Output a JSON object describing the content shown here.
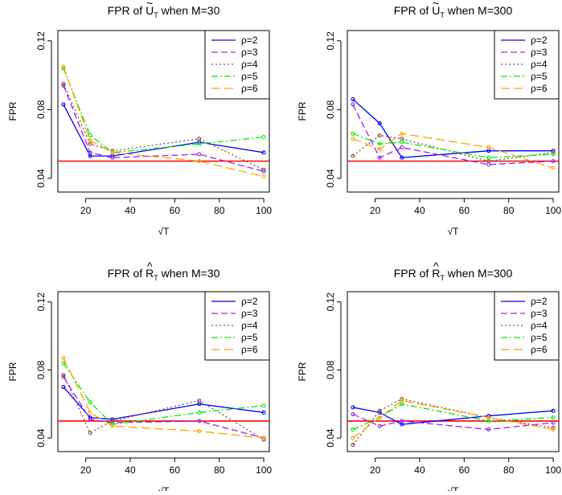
{
  "colors": {
    "reference_line": "#ff0000",
    "series": [
      "#0000ff",
      "#a020f0",
      "#8a4a4a",
      "#00ee00",
      "#ffa500"
    ]
  },
  "legend": [
    "ρ=2",
    "ρ=3",
    "ρ=4",
    "ρ=5",
    "ρ=6"
  ],
  "chart_data": [
    {
      "type": "line",
      "title": "FPR of Ũ_T when M=30",
      "title_parts": {
        "prefix": "FPR of ",
        "letter": "U",
        "accent": "~",
        "subscript": "T",
        "suffix": " when M=30"
      },
      "xlabel": "√T",
      "ylabel": "FPR",
      "xticks": [
        20,
        40,
        60,
        80,
        100
      ],
      "yticks": [
        0.04,
        0.08,
        0.12
      ],
      "xlim": [
        7.5,
        102.5
      ],
      "ylim": [
        0.032,
        0.126
      ],
      "reference_y": 0.05,
      "legend_placement": "top-right",
      "x": [
        10,
        22,
        32,
        71,
        100
      ],
      "series": [
        {
          "name": "ρ=2",
          "values": [
            0.083,
            0.053,
            0.053,
            0.061,
            0.055
          ]
        },
        {
          "name": "ρ=3",
          "values": [
            0.094,
            0.055,
            0.052,
            0.054,
            0.044
          ]
        },
        {
          "name": "ρ=4",
          "values": [
            0.095,
            0.06,
            0.056,
            0.063,
            0.045
          ]
        },
        {
          "name": "ρ=5",
          "values": [
            0.104,
            0.065,
            0.055,
            0.06,
            0.064
          ]
        },
        {
          "name": "ρ=6",
          "values": [
            0.105,
            0.062,
            0.055,
            0.05,
            0.041
          ]
        }
      ]
    },
    {
      "type": "line",
      "title": "FPR of Ũ_T when M=300",
      "title_parts": {
        "prefix": "FPR of ",
        "letter": "U",
        "accent": "~",
        "subscript": "T",
        "suffix": " when M=300"
      },
      "xlabel": "√T",
      "ylabel": "FPR",
      "xticks": [
        20,
        40,
        60,
        80,
        100
      ],
      "yticks": [
        0.04,
        0.08,
        0.12
      ],
      "xlim": [
        7.5,
        102.5
      ],
      "ylim": [
        0.032,
        0.126
      ],
      "reference_y": 0.05,
      "legend_placement": "top-right",
      "x": [
        10,
        22,
        32,
        71,
        100
      ],
      "series": [
        {
          "name": "ρ=2",
          "values": [
            0.086,
            0.072,
            0.052,
            0.056,
            0.056
          ]
        },
        {
          "name": "ρ=3",
          "values": [
            0.083,
            0.052,
            0.058,
            0.048,
            0.05
          ]
        },
        {
          "name": "ρ=4",
          "values": [
            0.053,
            0.065,
            0.063,
            0.05,
            0.055
          ]
        },
        {
          "name": "ρ=5",
          "values": [
            0.066,
            0.06,
            0.061,
            0.052,
            0.054
          ]
        },
        {
          "name": "ρ=6",
          "values": [
            0.063,
            0.057,
            0.066,
            0.058,
            0.046
          ]
        }
      ]
    },
    {
      "type": "line",
      "title": "FPR of R̂_T when M=30",
      "title_parts": {
        "prefix": "FPR of ",
        "letter": "R",
        "accent": "^",
        "subscript": "T",
        "suffix": " when M=30"
      },
      "xlabel": "√T",
      "ylabel": "FPR",
      "xticks": [
        20,
        40,
        60,
        80,
        100
      ],
      "yticks": [
        0.04,
        0.08,
        0.12
      ],
      "xlim": [
        7.5,
        102.5
      ],
      "ylim": [
        0.032,
        0.126
      ],
      "reference_y": 0.05,
      "legend_placement": "top-right",
      "x": [
        10,
        22,
        32,
        71,
        100
      ],
      "series": [
        {
          "name": "ρ=2",
          "values": [
            0.07,
            0.052,
            0.051,
            0.06,
            0.055
          ]
        },
        {
          "name": "ρ=3",
          "values": [
            0.076,
            0.051,
            0.049,
            0.05,
            0.04
          ]
        },
        {
          "name": "ρ=4",
          "values": [
            0.077,
            0.043,
            0.05,
            0.062,
            0.039
          ]
        },
        {
          "name": "ρ=5",
          "values": [
            0.084,
            0.061,
            0.048,
            0.055,
            0.059
          ]
        },
        {
          "name": "ρ=6",
          "values": [
            0.087,
            0.055,
            0.047,
            0.044,
            0.04
          ]
        }
      ]
    },
    {
      "type": "line",
      "title": "FPR of R̂_T when M=300",
      "title_parts": {
        "prefix": "FPR of ",
        "letter": "R",
        "accent": "^",
        "subscript": "T",
        "suffix": " when M=300"
      },
      "xlabel": "√T",
      "ylabel": "FPR",
      "xticks": [
        20,
        40,
        60,
        80,
        100
      ],
      "yticks": [
        0.04,
        0.08,
        0.12
      ],
      "xlim": [
        7.5,
        102.5
      ],
      "ylim": [
        0.032,
        0.126
      ],
      "reference_y": 0.05,
      "legend_placement": "top-right",
      "x": [
        10,
        22,
        32,
        71,
        100
      ],
      "series": [
        {
          "name": "ρ=2",
          "values": [
            0.058,
            0.055,
            0.048,
            0.053,
            0.056
          ]
        },
        {
          "name": "ρ=3",
          "values": [
            0.054,
            0.047,
            0.05,
            0.045,
            0.049
          ]
        },
        {
          "name": "ρ=4",
          "values": [
            0.036,
            0.056,
            0.063,
            0.052,
            0.046
          ]
        },
        {
          "name": "ρ=5",
          "values": [
            0.045,
            0.052,
            0.06,
            0.05,
            0.052
          ]
        },
        {
          "name": "ρ=6",
          "values": [
            0.04,
            0.052,
            0.062,
            0.052,
            0.045
          ]
        }
      ]
    }
  ]
}
